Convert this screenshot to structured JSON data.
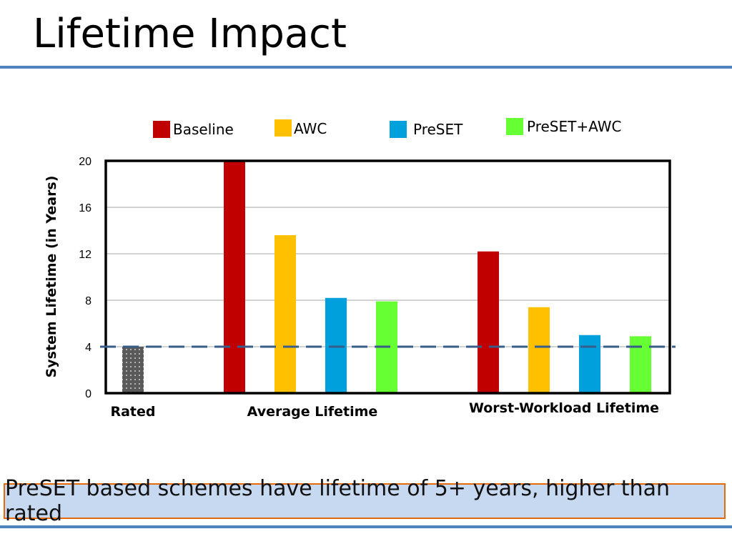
{
  "title": "Lifetime Impact",
  "callout": "PreSET based schemes have lifetime of 5+ years, higher than rated",
  "colors": {
    "baseline": "#c00000",
    "awc": "#ffc000",
    "preset": "#00a0dc",
    "preset_awc": "#66ff33",
    "rated": "#5a5a5a",
    "rule": "#4f81bd",
    "callout_bg": "#c6d9f1",
    "callout_border": "#e36c09"
  },
  "chart_data": {
    "type": "bar",
    "ylabel": "System Lifetime (in Years)",
    "ylim": [
      0,
      20
    ],
    "yticks": [
      0,
      4,
      8,
      12,
      16,
      20
    ],
    "grid": true,
    "legend_placement": "top",
    "legend": [
      "Baseline",
      "AWC",
      "PreSET",
      "PreSET+AWC"
    ],
    "reference_line": {
      "y": 4,
      "style": "dashed"
    },
    "groups": [
      {
        "label": "Rated",
        "bars": [
          {
            "series": "Rated",
            "value": 4.0
          }
        ]
      },
      {
        "label": "Average Lifetime",
        "bars": [
          {
            "series": "Baseline",
            "value": 20.0
          },
          {
            "series": "AWC",
            "value": 13.6
          },
          {
            "series": "PreSET",
            "value": 8.2
          },
          {
            "series": "PreSET+AWC",
            "value": 7.9
          }
        ]
      },
      {
        "label": "Worst-Workload Lifetime",
        "bars": [
          {
            "series": "Baseline",
            "value": 12.2
          },
          {
            "series": "AWC",
            "value": 7.4
          },
          {
            "series": "PreSET",
            "value": 5.0
          },
          {
            "series": "PreSET+AWC",
            "value": 4.9
          }
        ]
      }
    ]
  }
}
